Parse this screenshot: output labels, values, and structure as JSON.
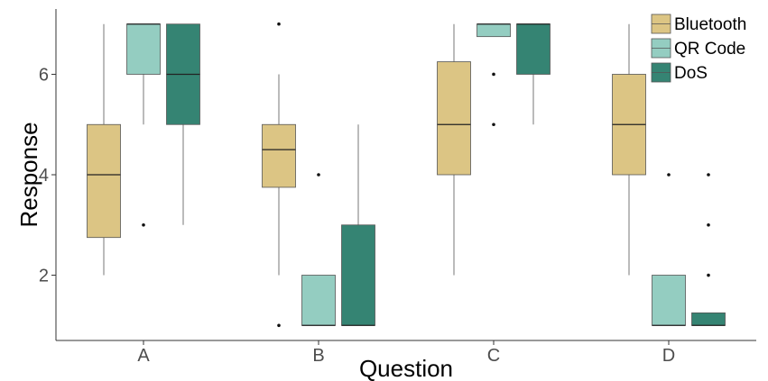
{
  "chart_data": {
    "type": "box",
    "title": "",
    "xlabel": "Question",
    "ylabel": "Response",
    "categories": [
      "A",
      "B",
      "C",
      "D"
    ],
    "y_ticks": [
      2,
      4,
      6
    ],
    "ylim": [
      0.7,
      7.3
    ],
    "grid": false,
    "legend_position": "top-right",
    "series": [
      {
        "name": "Bluetooth",
        "color": "#DCC584",
        "boxes": [
          {
            "category": "A",
            "whisker_low": 2,
            "q1": 2.75,
            "median": 4,
            "q3": 5,
            "whisker_high": 7,
            "outliers": []
          },
          {
            "category": "B",
            "whisker_low": 2,
            "q1": 3.75,
            "median": 4.5,
            "q3": 5,
            "whisker_high": 6,
            "outliers": [
              1,
              7
            ]
          },
          {
            "category": "C",
            "whisker_low": 2,
            "q1": 4,
            "median": 5,
            "q3": 6.25,
            "whisker_high": 7,
            "outliers": []
          },
          {
            "category": "D",
            "whisker_low": 2,
            "q1": 4,
            "median": 5,
            "q3": 6,
            "whisker_high": 7,
            "outliers": []
          }
        ]
      },
      {
        "name": "QR Code",
        "color": "#94CDC1",
        "boxes": [
          {
            "category": "A",
            "whisker_low": 5,
            "q1": 6,
            "median": 7,
            "q3": 7,
            "whisker_high": 7,
            "outliers": [
              3
            ]
          },
          {
            "category": "B",
            "whisker_low": 1,
            "q1": 1,
            "median": 1,
            "q3": 2,
            "whisker_high": 2,
            "outliers": [
              4
            ]
          },
          {
            "category": "C",
            "whisker_low": 6.75,
            "q1": 6.75,
            "median": 7,
            "q3": 7,
            "whisker_high": 7,
            "outliers": [
              5,
              6
            ]
          },
          {
            "category": "D",
            "whisker_low": 1,
            "q1": 1,
            "median": 1,
            "q3": 2,
            "whisker_high": 2,
            "outliers": [
              4
            ]
          }
        ]
      },
      {
        "name": "DoS",
        "color": "#358473",
        "boxes": [
          {
            "category": "A",
            "whisker_low": 3,
            "q1": 5,
            "median": 6,
            "q3": 7,
            "whisker_high": 7,
            "outliers": []
          },
          {
            "category": "B",
            "whisker_low": 1,
            "q1": 1,
            "median": 1,
            "q3": 3,
            "whisker_high": 5,
            "outliers": []
          },
          {
            "category": "C",
            "whisker_low": 5,
            "q1": 6,
            "median": 7,
            "q3": 7,
            "whisker_high": 7,
            "outliers": []
          },
          {
            "category": "D",
            "whisker_low": 1,
            "q1": 1,
            "median": 1,
            "q3": 1.25,
            "whisker_high": 1.25,
            "outliers": [
              2,
              3,
              4
            ]
          }
        ]
      }
    ]
  }
}
